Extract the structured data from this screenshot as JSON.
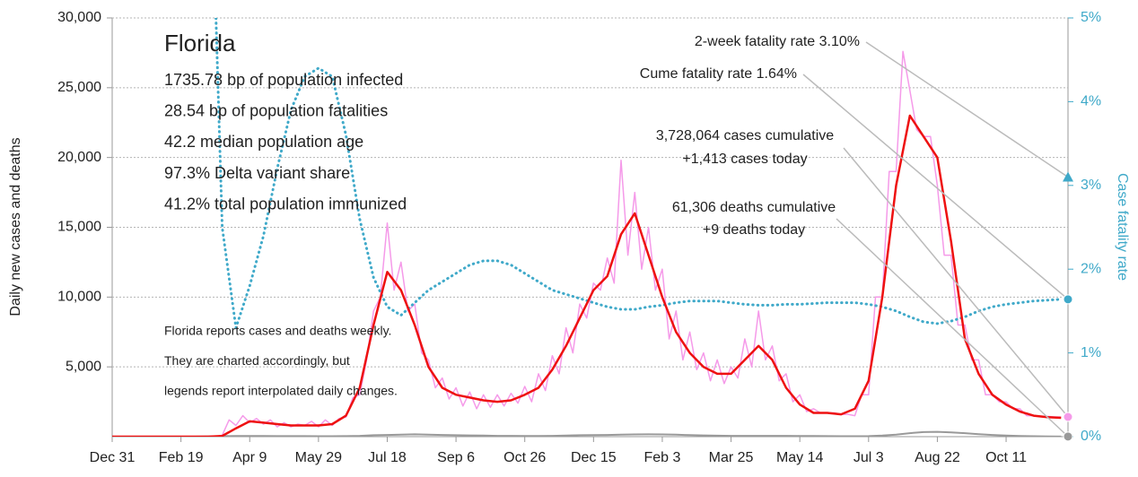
{
  "chart_data": {
    "type": "line",
    "title": "Florida",
    "stats": [
      "1735.78 bp of population infected",
      "28.54 bp of population fatalities",
      "42.2 median population age",
      "97.3% Delta variant share",
      "41.2% total population immunized"
    ],
    "note": [
      "Florida reports cases and deaths weekly.",
      "They are charted accordingly, but",
      "legends report interpolated daily changes."
    ],
    "y_label": "Daily new cases and deaths",
    "y2_label": "Case fatality rate",
    "xlim": [
      0,
      695
    ],
    "xticks": [
      {
        "value": 0,
        "label": "Dec 31"
      },
      {
        "value": 50,
        "label": "Feb 19"
      },
      {
        "value": 100,
        "label": "Apr 9"
      },
      {
        "value": 150,
        "label": "May 29"
      },
      {
        "value": 200,
        "label": "Jul 18"
      },
      {
        "value": 250,
        "label": "Sep 6"
      },
      {
        "value": 300,
        "label": "Oct 26"
      },
      {
        "value": 350,
        "label": "Dec 15"
      },
      {
        "value": 400,
        "label": "Feb 3"
      },
      {
        "value": 450,
        "label": "Mar 25"
      },
      {
        "value": 500,
        "label": "May 14"
      },
      {
        "value": 550,
        "label": "Jul 3"
      },
      {
        "value": 600,
        "label": "Aug 22"
      },
      {
        "value": 650,
        "label": "Oct 11"
      }
    ],
    "ylim": [
      0,
      30000
    ],
    "yticks": [
      {
        "value": 5000,
        "label": "5,000"
      },
      {
        "value": 10000,
        "label": "10,000"
      },
      {
        "value": 15000,
        "label": "15,000"
      },
      {
        "value": 20000,
        "label": "20,000"
      },
      {
        "value": 25000,
        "label": "25,000"
      },
      {
        "value": 30000,
        "label": "30,000"
      }
    ],
    "y2lim": [
      0,
      5
    ],
    "y2ticks": [
      {
        "value": 0,
        "label": "0%"
      },
      {
        "value": 1,
        "label": "1%"
      },
      {
        "value": 2,
        "label": "2%"
      },
      {
        "value": 3,
        "label": "3%"
      },
      {
        "value": 4,
        "label": "4%"
      },
      {
        "value": 5,
        "label": "5%"
      }
    ],
    "grid": true,
    "x": [
      0,
      10,
      20,
      30,
      40,
      50,
      60,
      70,
      80,
      90,
      100,
      110,
      120,
      130,
      140,
      150,
      160,
      170,
      180,
      190,
      200,
      210,
      220,
      230,
      240,
      250,
      260,
      270,
      280,
      290,
      300,
      310,
      320,
      330,
      340,
      350,
      360,
      370,
      380,
      390,
      400,
      410,
      420,
      430,
      440,
      450,
      460,
      470,
      480,
      490,
      500,
      510,
      520,
      530,
      540,
      550,
      560,
      570,
      580,
      590,
      600,
      610,
      620,
      630,
      640,
      650,
      660,
      670,
      680,
      690
    ],
    "series": [
      {
        "name": "Daily cases",
        "color": "#f59ae9",
        "style": "solid",
        "width": 1.5,
        "x": [
          0,
          5,
          10,
          15,
          20,
          25,
          30,
          35,
          40,
          45,
          50,
          55,
          60,
          65,
          70,
          75,
          80,
          85,
          90,
          95,
          100,
          105,
          110,
          115,
          120,
          125,
          130,
          135,
          140,
          145,
          150,
          155,
          160,
          165,
          170,
          175,
          180,
          185,
          190,
          195,
          200,
          205,
          210,
          215,
          220,
          225,
          230,
          235,
          240,
          245,
          250,
          255,
          260,
          265,
          270,
          275,
          280,
          285,
          290,
          295,
          300,
          305,
          310,
          315,
          320,
          325,
          330,
          335,
          340,
          345,
          350,
          355,
          360,
          365,
          370,
          375,
          380,
          385,
          390,
          395,
          400,
          405,
          410,
          415,
          420,
          425,
          430,
          435,
          440,
          445,
          450,
          455,
          460,
          465,
          470,
          475,
          480,
          485,
          490,
          495,
          500,
          505,
          510,
          515,
          520,
          525,
          530,
          535,
          540,
          545,
          550,
          555,
          560,
          565,
          570,
          575,
          580,
          585,
          590,
          595,
          600,
          605,
          610,
          615,
          620,
          625,
          630,
          635,
          640,
          645,
          650,
          655,
          660,
          665,
          670,
          675,
          680,
          685,
          690
        ],
        "values": [
          0,
          0,
          0,
          0,
          0,
          0,
          0,
          0,
          0,
          0,
          0,
          0,
          0,
          0,
          0,
          0,
          100,
          1200,
          800,
          1500,
          1000,
          1300,
          900,
          1200,
          700,
          1000,
          700,
          900,
          800,
          1100,
          700,
          1200,
          800,
          1300,
          1400,
          2800,
          3000,
          5500,
          9000,
          10000,
          15300,
          10500,
          12500,
          9000,
          9500,
          6000,
          5500,
          3500,
          4200,
          2700,
          3500,
          2200,
          3200,
          2000,
          3000,
          2100,
          3000,
          2200,
          3100,
          2400,
          3600,
          2500,
          4500,
          3300,
          5800,
          4500,
          7800,
          6000,
          9500,
          8500,
          11000,
          10500,
          12800,
          11000,
          19800,
          13000,
          17500,
          12000,
          15000,
          10500,
          12000,
          7000,
          9000,
          5500,
          7500,
          4800,
          6000,
          4000,
          5500,
          3800,
          5000,
          4200,
          7000,
          5000,
          9000,
          5500,
          6500,
          4000,
          4500,
          2500,
          3000,
          1800,
          2000,
          1700,
          1700,
          1700,
          1600,
          1600,
          1500,
          3000,
          3000,
          10000,
          10000,
          19000,
          19000,
          27600,
          24800,
          22000,
          21500,
          21500,
          18000,
          13000,
          13000,
          8000,
          8000,
          5500,
          5500,
          3000,
          3000,
          2500,
          2500,
          2000,
          2000,
          1500,
          1500,
          1450,
          1450,
          1413,
          1413
        ]
      },
      {
        "name": "Daily deaths",
        "color": "#999999",
        "style": "solid",
        "width": 2,
        "values": [
          0,
          0,
          0,
          0,
          0,
          0,
          0,
          10,
          40,
          50,
          50,
          45,
          40,
          40,
          40,
          35,
          35,
          40,
          60,
          100,
          120,
          150,
          170,
          150,
          120,
          100,
          90,
          80,
          60,
          55,
          50,
          50,
          60,
          80,
          100,
          110,
          120,
          140,
          160,
          170,
          160,
          140,
          110,
          90,
          70,
          60,
          60,
          60,
          60,
          55,
          50,
          45,
          40,
          35,
          35,
          40,
          80,
          150,
          250,
          330,
          350,
          300,
          250,
          180,
          120,
          80,
          50,
          30,
          20,
          9
        ]
      },
      {
        "name": "Case fatality rate",
        "color": "#3fa9c9",
        "style": "dotted",
        "width": 3,
        "axis": "y2",
        "values": [
          null,
          null,
          null,
          null,
          null,
          null,
          null,
          8,
          2.5,
          1.3,
          1.8,
          2.4,
          3.2,
          3.9,
          4.3,
          4.4,
          4.3,
          3.6,
          2.6,
          1.9,
          1.55,
          1.45,
          1.6,
          1.75,
          1.85,
          1.95,
          2.05,
          2.1,
          2.1,
          2.05,
          1.95,
          1.85,
          1.75,
          1.7,
          1.65,
          1.6,
          1.55,
          1.52,
          1.52,
          1.55,
          1.57,
          1.6,
          1.62,
          1.62,
          1.62,
          1.6,
          1.58,
          1.57,
          1.57,
          1.58,
          1.58,
          1.59,
          1.6,
          1.6,
          1.6,
          1.58,
          1.55,
          1.5,
          1.43,
          1.37,
          1.35,
          1.38,
          1.43,
          1.5,
          1.55,
          1.58,
          1.6,
          1.62,
          1.63,
          1.64
        ]
      },
      {
        "name": "7-day average cases",
        "color": "#ee1111",
        "style": "solid",
        "width": 2.5,
        "values": [
          0,
          0,
          0,
          0,
          0,
          0,
          0,
          0,
          50,
          600,
          1100,
          1000,
          900,
          800,
          800,
          800,
          900,
          1500,
          3500,
          8000,
          11800,
          10500,
          8000,
          5000,
          3500,
          3000,
          2800,
          2600,
          2500,
          2600,
          3000,
          3500,
          4800,
          6500,
          8500,
          10500,
          11500,
          14500,
          16000,
          13000,
          10000,
          7500,
          6000,
          5000,
          4500,
          4500,
          5500,
          6500,
          5500,
          3500,
          2300,
          1700,
          1700,
          1600,
          2000,
          4000,
          10000,
          18000,
          23000,
          21500,
          20000,
          14000,
          7000,
          4500,
          3000,
          2300,
          1800,
          1500,
          1400,
          1350
        ]
      }
    ],
    "annotations": [
      {
        "lines": [
          "2-week fatality rate 3.10%"
        ],
        "value": 3.1,
        "axis": "y2",
        "marker": "triangle",
        "color": "#3fa9c9"
      },
      {
        "lines": [
          "Cume fatality rate 1.64%"
        ],
        "value": 1.64,
        "axis": "y2",
        "marker": "circle",
        "color": "#3fa9c9"
      },
      {
        "lines": [
          "3,728,064 cases cumulative",
          "+1,413 cases today"
        ],
        "value": 1413,
        "axis": "y",
        "marker": "circle",
        "color": "#f59ae9"
      },
      {
        "lines": [
          "61,306 deaths cumulative",
          "+9 deaths today"
        ],
        "value": 9,
        "axis": "y",
        "marker": "circle",
        "color": "#999999"
      }
    ]
  }
}
